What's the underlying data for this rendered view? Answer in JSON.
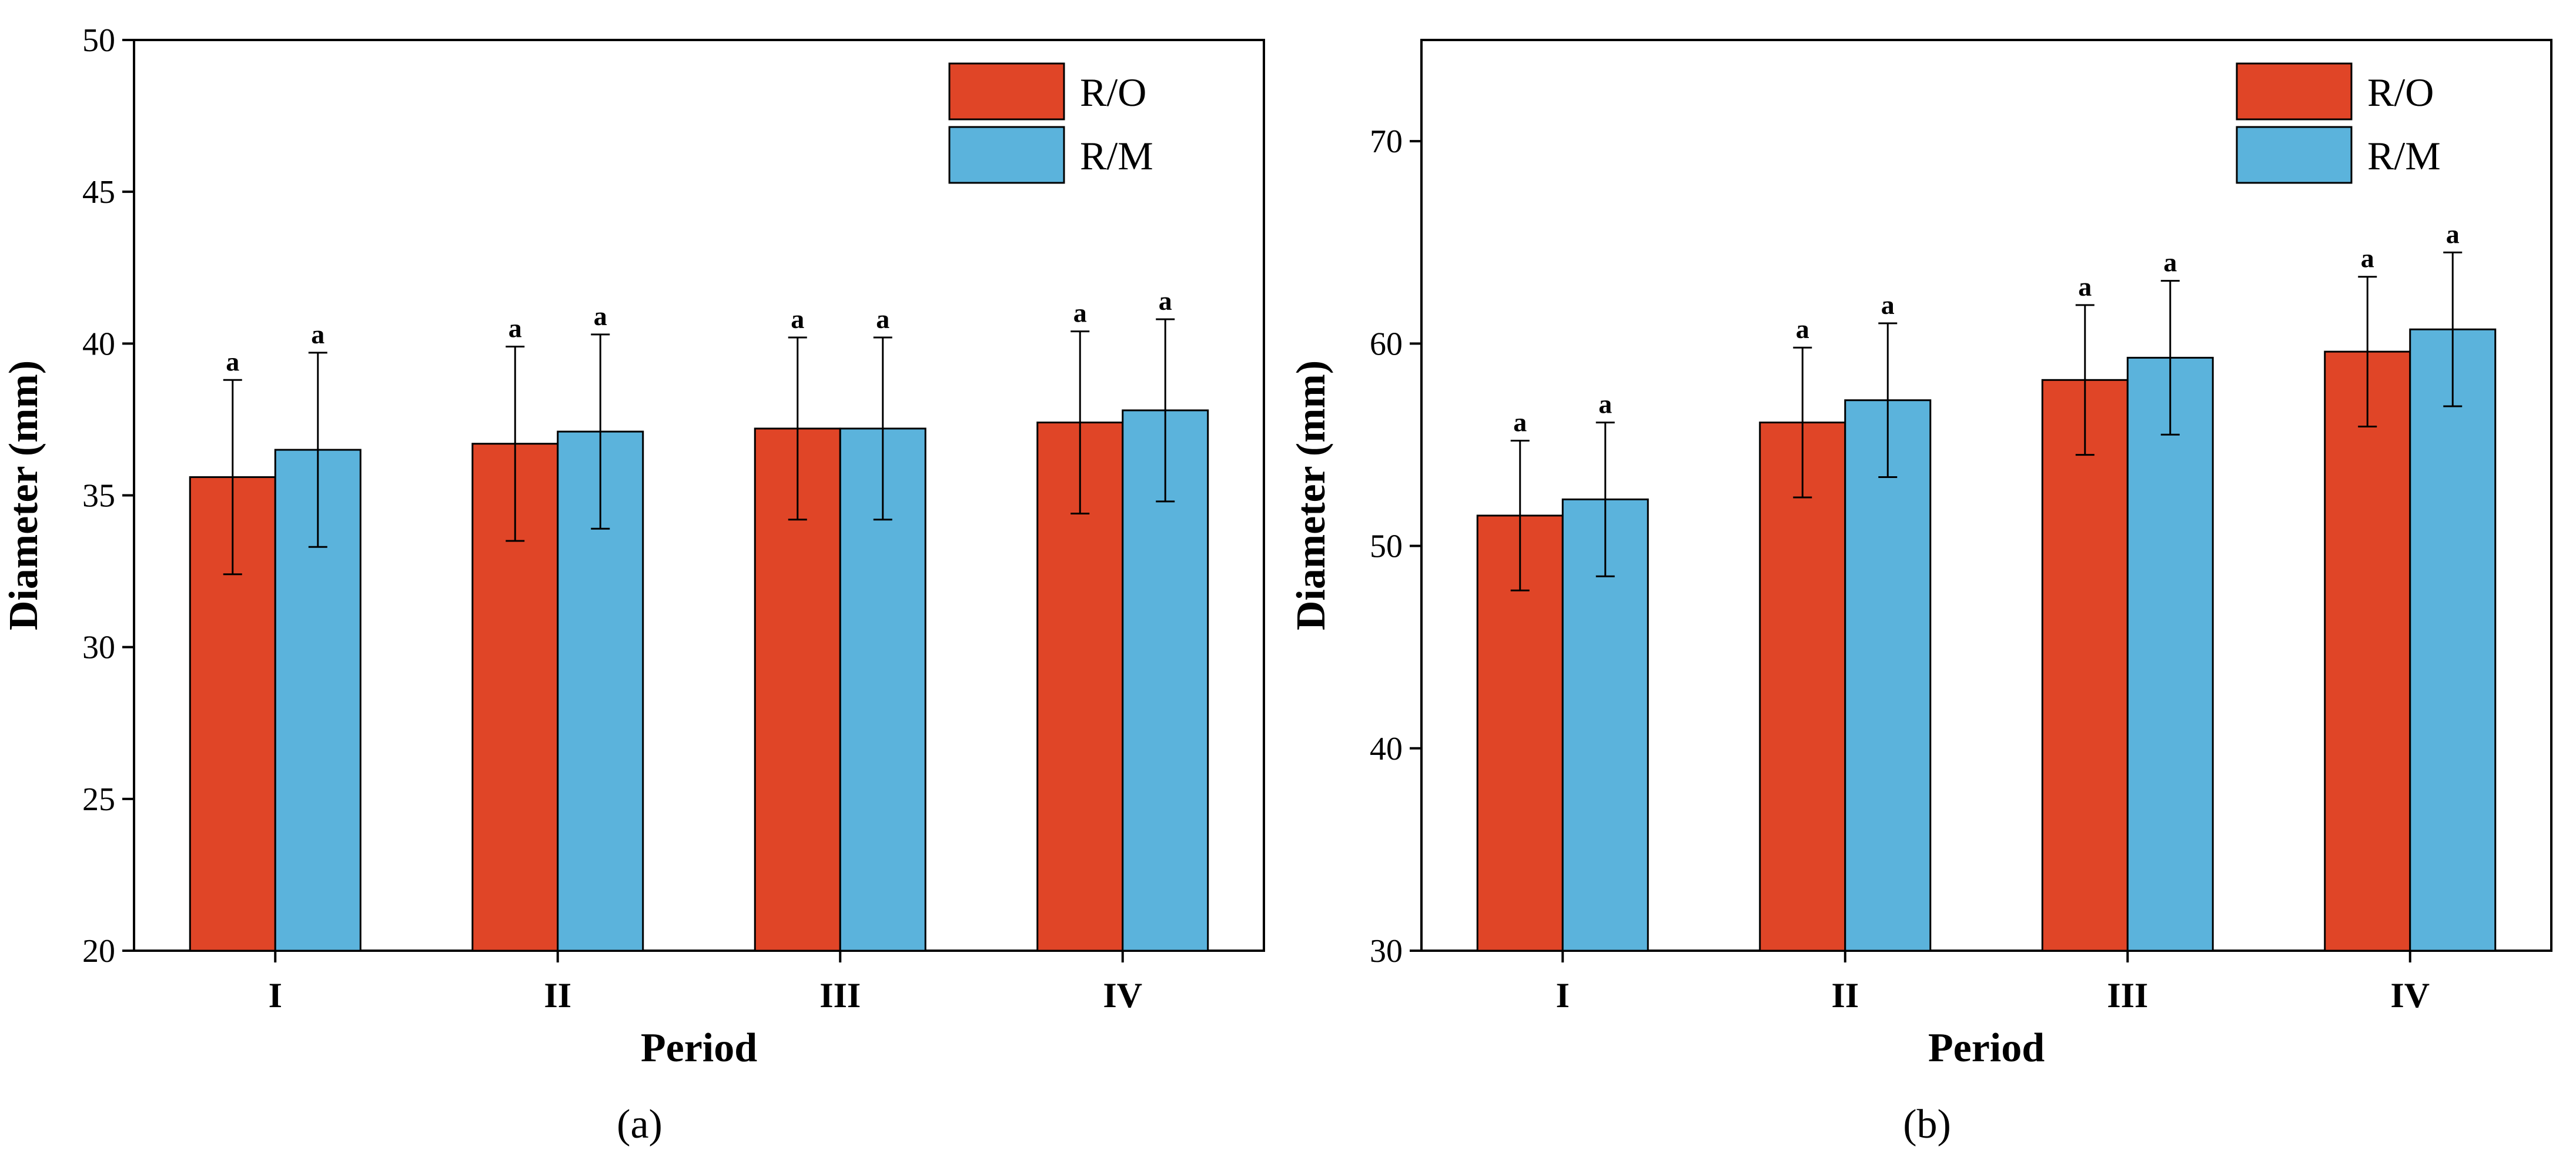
{
  "chart_data": [
    {
      "type": "bar",
      "panel_label": "(a)",
      "xlabel": "Period",
      "ylabel": "Diameter  (mm)",
      "categories": [
        "I",
        "II",
        "III",
        "IV"
      ],
      "ylim": [
        20,
        50
      ],
      "yticks": [
        20,
        25,
        30,
        35,
        40,
        45,
        50
      ],
      "legend_position": "top-right",
      "series": [
        {
          "name": "R/O",
          "color": "#E04527",
          "values": [
            35.6,
            36.7,
            37.2,
            37.4
          ],
          "errors": [
            3.2,
            3.2,
            3.0,
            3.0
          ],
          "labels": [
            "a",
            "a",
            "a",
            "a"
          ]
        },
        {
          "name": "R/M",
          "color": "#5BB3DC",
          "values": [
            36.5,
            37.1,
            37.2,
            37.8
          ],
          "errors": [
            3.2,
            3.2,
            3.0,
            3.0
          ],
          "labels": [
            "a",
            "a",
            "a",
            "a"
          ]
        }
      ]
    },
    {
      "type": "bar",
      "panel_label": "(b)",
      "xlabel": "Period",
      "ylabel": "Diameter  (mm)",
      "categories": [
        "I",
        "II",
        "III",
        "IV"
      ],
      "ylim": [
        30,
        75
      ],
      "yticks": [
        30,
        40,
        50,
        60,
        70
      ],
      "legend_position": "top-right",
      "series": [
        {
          "name": "R/O",
          "color": "#E04527",
          "values": [
            51.5,
            56.1,
            58.2,
            59.6
          ],
          "errors": [
            3.7,
            3.7,
            3.7,
            3.7
          ],
          "labels": [
            "a",
            "a",
            "a",
            "a"
          ]
        },
        {
          "name": "R/M",
          "color": "#5BB3DC",
          "values": [
            52.3,
            57.2,
            59.3,
            60.7
          ],
          "errors": [
            3.8,
            3.8,
            3.8,
            3.8
          ],
          "labels": [
            "a",
            "a",
            "a",
            "a"
          ]
        }
      ]
    }
  ]
}
